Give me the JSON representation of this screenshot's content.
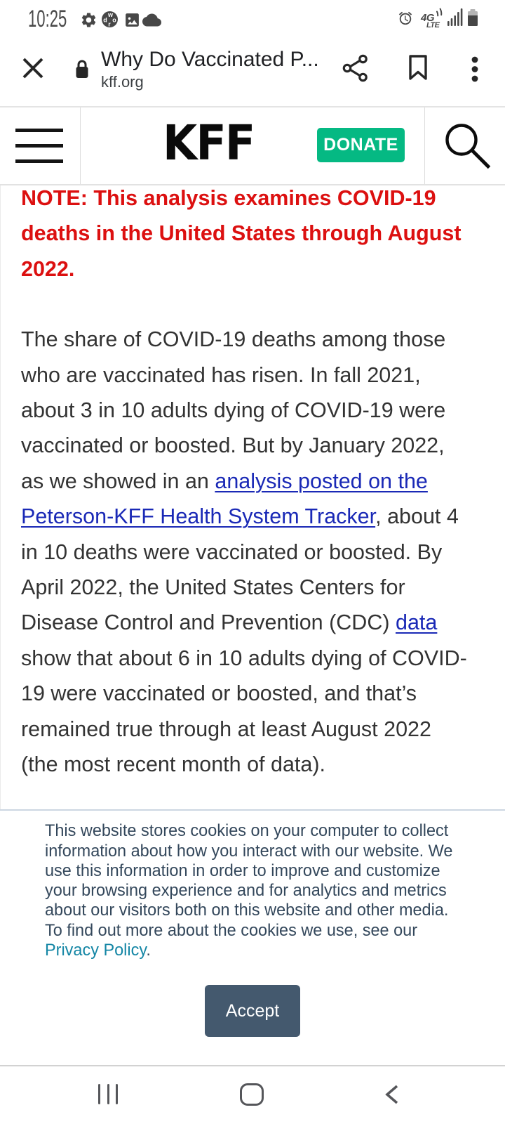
{
  "status_bar": {
    "time": "10:25",
    "network": "4G",
    "network_sub": "LTE",
    "battery_level_percent": 75
  },
  "browser_bar": {
    "page_title": "Why Do Vaccinated P...",
    "site_domain": "kff.org"
  },
  "site_header": {
    "logo": "KFF",
    "donate_label": "DONATE"
  },
  "article": {
    "note": "NOTE: This analysis examines COVID-19\ndeaths in the United States through August\n2022.",
    "paragraph_segments": [
      {
        "type": "text",
        "text": "The share of COVID-19 deaths among those\nwho are vaccinated has risen. In fall 2021,\nabout 3 in 10 adults dying of COVID-19 were\nvaccinated or boosted. But by January 2022,\nas we showed in an "
      },
      {
        "type": "link",
        "text": "analysis posted on the\nPeterson-KFF Health System Tracker"
      },
      {
        "type": "text",
        "text": ", about 4\nin 10 deaths were vaccinated or boosted. By\nApril 2022, the United States Centers for\nDisease Control and Prevention (CDC) "
      },
      {
        "type": "link",
        "text": "data"
      },
      {
        "type": "text",
        "text": "\nshow that about 6 in 10 adults dying of COVID-\n19 were vaccinated or boosted, and that’s\nremained true through at least August 2022\n(the most recent month of data)."
      }
    ]
  },
  "cookie_banner": {
    "message": "This website stores cookies on your computer to collect\ninformation about how you interact with our website. We\nuse this information in order to improve and customize\nyour browsing experience and for analytics and metrics\nabout our visitors both on this website and other media.\nTo find out more about the cookies we use, see our\n",
    "privacy_link_label": "Privacy Policy",
    "privacy_suffix": ".",
    "accept_label": "Accept"
  },
  "colors": {
    "donate_green": "#05b983",
    "note_red": "#dc1010",
    "link_blue": "#1a29b6",
    "cookie_text_slate": "#33475b",
    "cookie_link_teal": "#1486a5",
    "accept_slate_blue": "#44596e"
  }
}
